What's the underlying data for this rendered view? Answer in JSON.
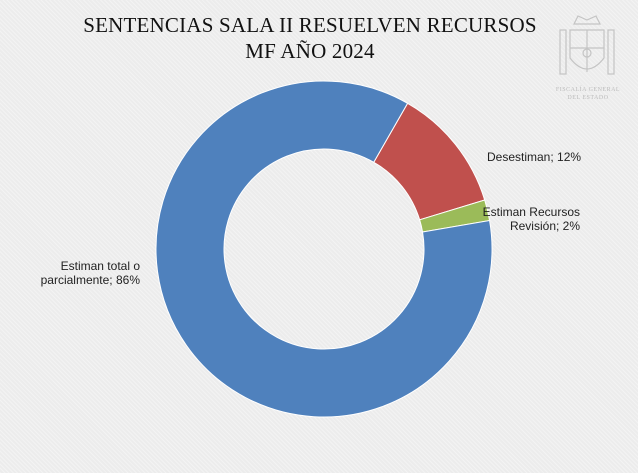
{
  "title_lines": [
    "SENTENCIAS SALA II RESUELVEN RECURSOS",
    "MF AÑO 2024"
  ],
  "logo": {
    "text_lines": [
      "FISCALÍA GENERAL",
      "DEL ESTADO"
    ]
  },
  "chart_data": {
    "type": "pie",
    "variant": "donut",
    "title": "SENTENCIAS SALA II RESUELVEN RECURSOS MF AÑO 2024",
    "slices": [
      {
        "label_lines": [
          "Desestiman; 12%"
        ],
        "value": 12,
        "color": "#c0504d"
      },
      {
        "label_lines": [
          "Estiman Recursos",
          "Revisión; 2%"
        ],
        "value": 2,
        "color": "#9bbb59"
      },
      {
        "label_lines": [
          "Estiman total o",
          "parcialmente; 86%"
        ],
        "value": 86,
        "color": "#4f81bd"
      }
    ]
  }
}
